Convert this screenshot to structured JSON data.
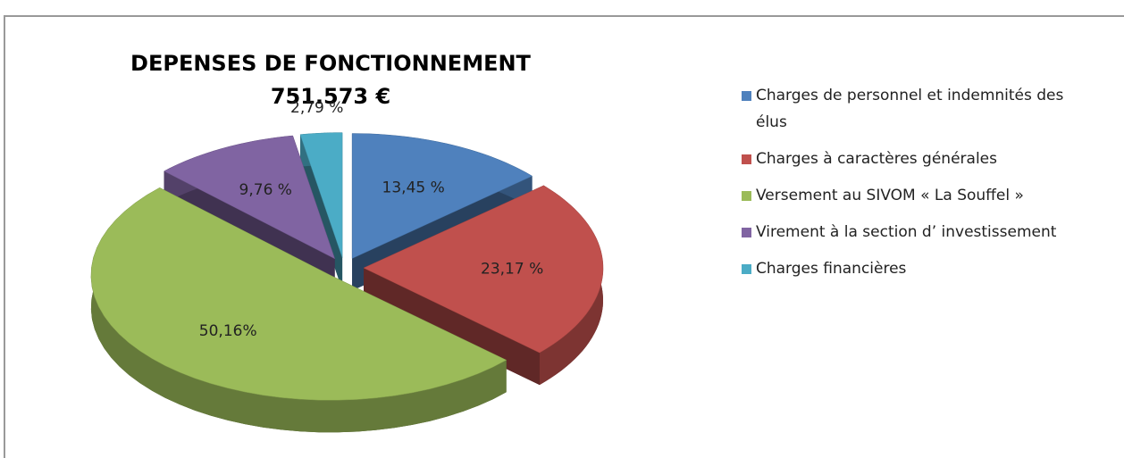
{
  "chart_data": {
    "type": "pie3d",
    "title": "DEPENSES DE FONCTIONNEMENT",
    "subtitle": "751.573 €",
    "categories": [
      "Charges de personnel et indemnités des élus",
      "Charges à caractères générales",
      "Versement au SIVOM « La Souffel »",
      "Virement à la section d’ investissement",
      "Charges financières"
    ],
    "values": [
      13.45,
      23.17,
      50.16,
      9.76,
      2.79
    ],
    "value_labels": [
      "13,45 %",
      "23,17 %",
      "50,16%",
      "9,76 %",
      "2,79 %"
    ],
    "colors": [
      "#4f81bd",
      "#c0504d",
      "#9bbb59",
      "#8064a2",
      "#4bacc6"
    ],
    "legend": "right"
  }
}
